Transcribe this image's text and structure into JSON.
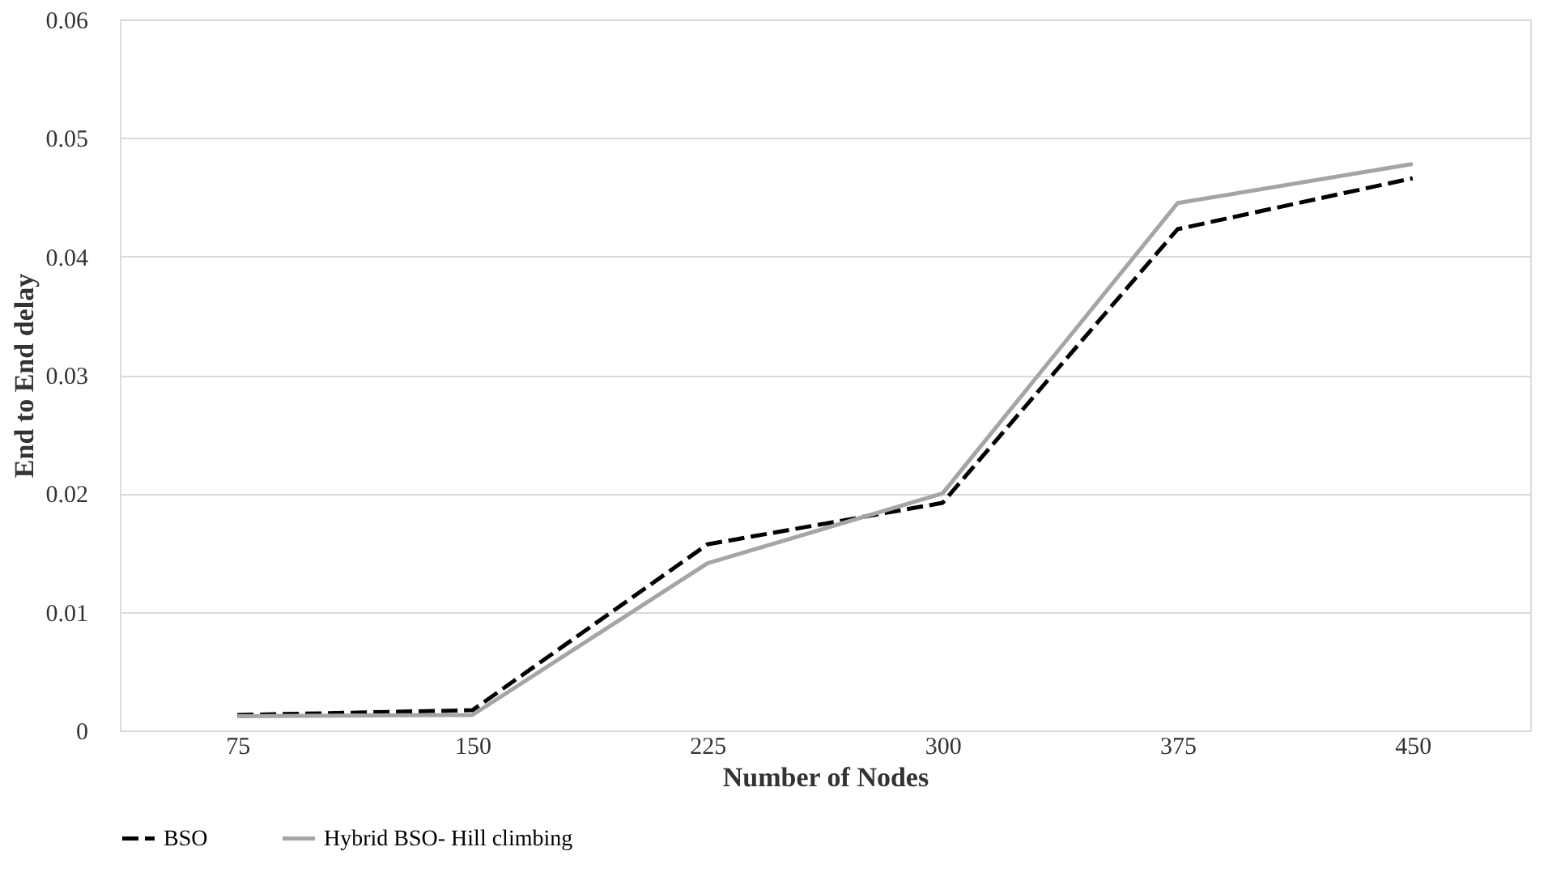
{
  "chart_data": {
    "type": "line",
    "xlabel": "Number of Nodes",
    "ylabel": "End to End delay",
    "categories": [
      "75",
      "150",
      "225",
      "300",
      "375",
      "450"
    ],
    "series": [
      {
        "name": "BSO",
        "color": "#000000",
        "line_style": "dashed",
        "values": [
          0.0013,
          0.0017,
          0.0157,
          0.0192,
          0.0423,
          0.0466
        ]
      },
      {
        "name": "Hybrid BSO- Hill climbing",
        "color": "#a5a5a5",
        "line_style": "solid",
        "values": [
          0.0012,
          0.0013,
          0.0141,
          0.02,
          0.0445,
          0.0478
        ]
      }
    ],
    "ylim": [
      0,
      0.06
    ],
    "yticks": [
      0,
      0.01,
      0.02,
      0.03,
      0.04,
      0.05,
      0.06
    ],
    "grid": "y",
    "legend": "bottom",
    "marker": "none"
  }
}
